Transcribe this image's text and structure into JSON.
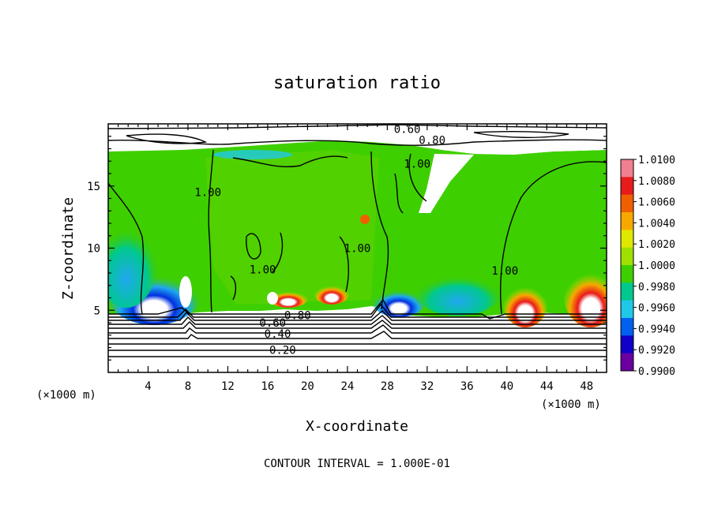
{
  "chart_data": {
    "type": "heatmap",
    "title": "saturation ratio",
    "xlabel": "X-coordinate",
    "ylabel": "Z-coordinate",
    "x_unit_left": "(×1000 m)",
    "x_unit_right": "(×1000 m)",
    "footer": "CONTOUR INTERVAL = 1.000E-01",
    "xlim": [
      0,
      50
    ],
    "ylim": [
      0,
      20
    ],
    "x_ticks": [
      4,
      8,
      12,
      16,
      20,
      24,
      28,
      32,
      36,
      40,
      44,
      48
    ],
    "y_ticks": [
      5,
      10,
      15
    ],
    "colorbar": {
      "min": 0.99,
      "max": 1.01,
      "labels": [
        "1.0100",
        "1.0080",
        "1.0060",
        "1.0040",
        "1.0020",
        "1.0000",
        "0.9980",
        "0.9960",
        "0.9940",
        "0.9920",
        "0.9900"
      ],
      "colors": [
        "#f07f8f",
        "#e81b1b",
        "#f06000",
        "#f7a800",
        "#dfe800",
        "#9fe000",
        "#3ecf00",
        "#00c88f",
        "#20c8e8",
        "#0060f0",
        "#1000c8",
        "#6a00a0"
      ]
    },
    "contour_labels": [
      {
        "text": "0.60",
        "x": 30.0,
        "z": 19.6
      },
      {
        "text": "0.80",
        "x": 32.5,
        "z": 18.7
      },
      {
        "text": "1.00",
        "x": 31.0,
        "z": 16.8
      },
      {
        "text": "1.00",
        "x": 10.0,
        "z": 14.5
      },
      {
        "text": "1.00",
        "x": 15.5,
        "z": 8.3
      },
      {
        "text": "1.00",
        "x": 25.0,
        "z": 10.0
      },
      {
        "text": "1.00",
        "x": 39.8,
        "z": 8.2
      },
      {
        "text": "0.80",
        "x": 19.0,
        "z": 4.6
      },
      {
        "text": "0.60",
        "x": 16.5,
        "z": 4.0
      },
      {
        "text": "0.40",
        "x": 17.0,
        "z": 3.1
      },
      {
        "text": "0.20",
        "x": 17.5,
        "z": 1.8
      }
    ],
    "grid": false
  }
}
